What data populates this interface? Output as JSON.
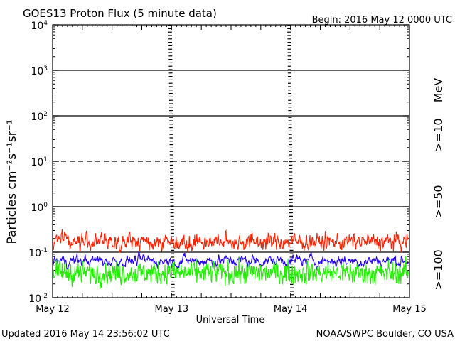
{
  "chart_data": {
    "type": "line",
    "title": "GOES13 Proton Flux (5 minute data)",
    "begin_label": "Begin: 2016 May 12 0000 UTC",
    "ylabel": "Particles cm⁻²s⁻¹sr⁻¹",
    "xlabel": "Universal Time",
    "yscale": "log",
    "ylim": [
      0.01,
      10000
    ],
    "yticks": [
      {
        "value": 0.01,
        "base": "10",
        "exp": "-2"
      },
      {
        "value": 0.1,
        "base": "10",
        "exp": "-1"
      },
      {
        "value": 1,
        "base": "10",
        "exp": "0"
      },
      {
        "value": 10,
        "base": "10",
        "exp": "1"
      },
      {
        "value": 100,
        "base": "10",
        "exp": "2"
      },
      {
        "value": 1000,
        "base": "10",
        "exp": "3"
      },
      {
        "value": 10000,
        "base": "10",
        "exp": "4"
      }
    ],
    "xlim": [
      0,
      3
    ],
    "xticks": [
      {
        "value": 0,
        "label": "May 12"
      },
      {
        "value": 1,
        "label": "May 13"
      },
      {
        "value": 2,
        "label": "May 14"
      },
      {
        "value": 3,
        "label": "May 15"
      }
    ],
    "unit_label": "MeV",
    "series": [
      {
        "name": ">=10",
        "color": "#ff2200",
        "base": 0.17,
        "spread": 0.16,
        "smooth": 0.5
      },
      {
        "name": ">=50",
        "color": "#2200ff",
        "base": 0.065,
        "spread": 0.18,
        "smooth": 0.75
      },
      {
        "name": ">=100",
        "color": "#22ee00",
        "base": 0.035,
        "spread": 0.17,
        "smooth": 0.3
      }
    ],
    "data_end": 2.99,
    "reference_lines": [
      {
        "value": 10,
        "style": "dashed"
      },
      {
        "value": 0.1,
        "style": "solid"
      },
      {
        "value": 1,
        "style": "solid"
      },
      {
        "value": 100,
        "style": "solid"
      },
      {
        "value": 1000,
        "style": "solid"
      }
    ],
    "grid": true
  },
  "footer": {
    "updated": "Updated 2016 May 14 23:56:02 UTC",
    "credit": "NOAA/SWPC Boulder, CO USA"
  }
}
